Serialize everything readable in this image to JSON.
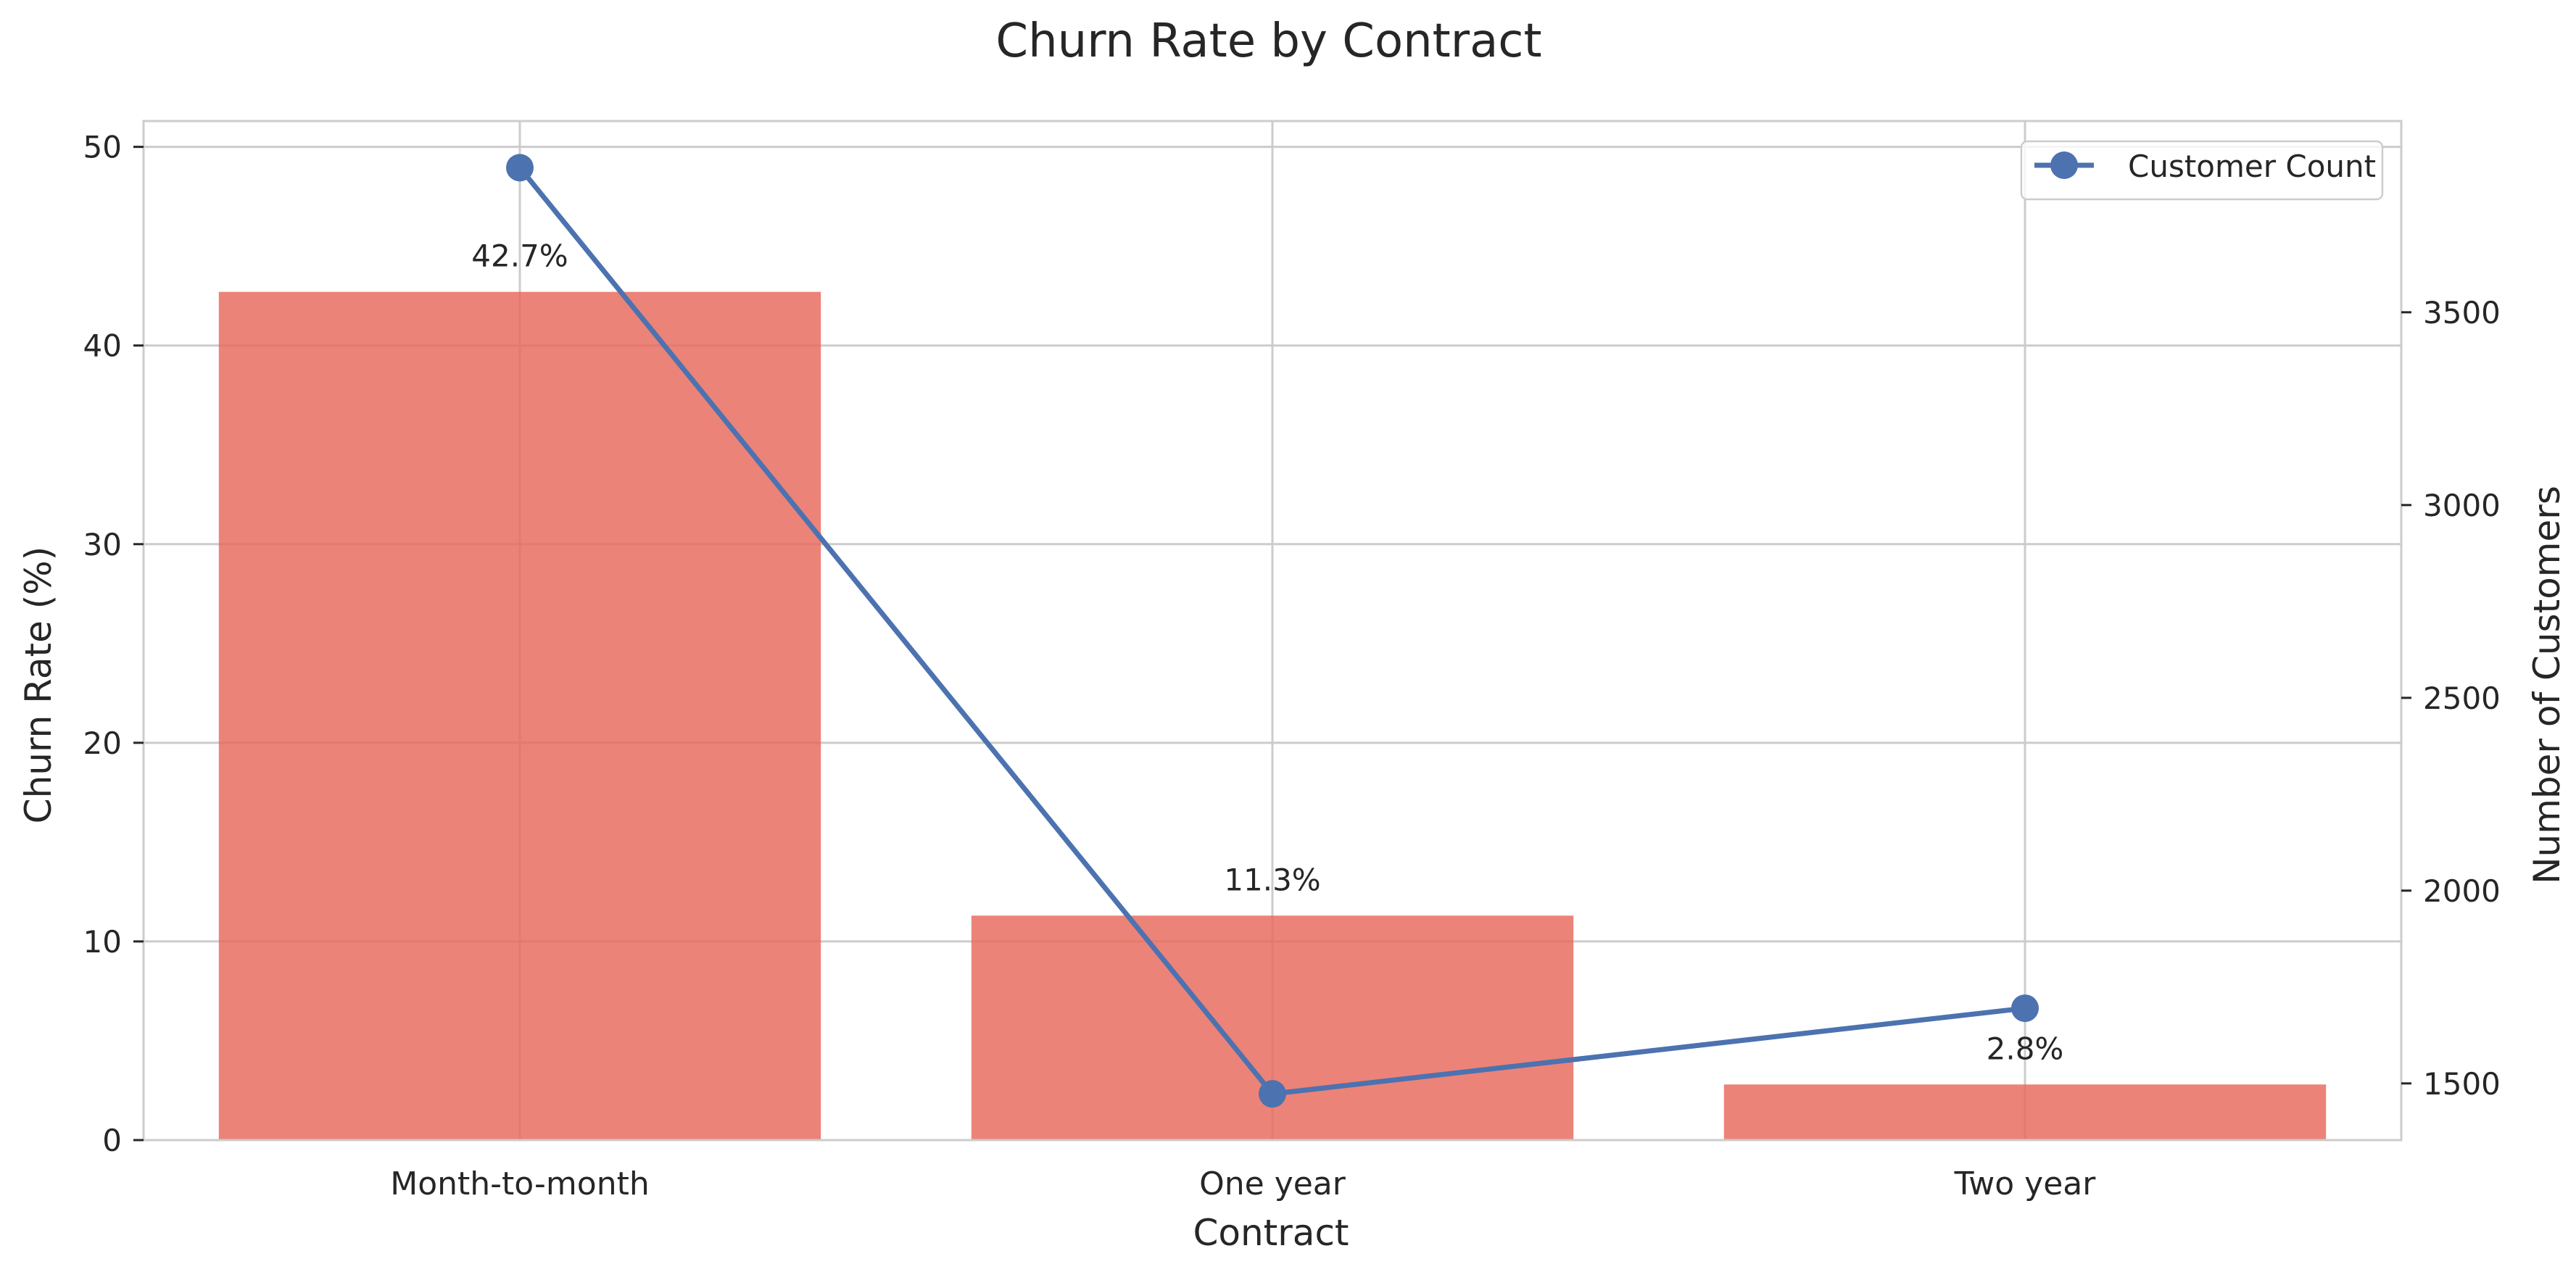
{
  "chart_data": {
    "type": "bar",
    "title": "Churn Rate by Contract",
    "xlabel": "Contract",
    "ylabel": "Churn Rate (%)",
    "y2label": "Number of Customers",
    "categories": [
      "Month-to-month",
      "One year",
      "Two year"
    ],
    "series": [
      {
        "type": "bar",
        "axis": "left",
        "values": [
          42.7,
          11.3,
          2.8
        ],
        "labels": [
          "42.7%",
          "11.3%",
          "2.8%"
        ],
        "color": "#e8685a"
      },
      {
        "name": "Customer Count",
        "type": "line",
        "axis": "right",
        "values": [
          3875,
          1473,
          1695
        ],
        "color": "#4c72b0"
      }
    ],
    "ylim": [
      0,
      51.3
    ],
    "yticks": [
      0,
      10,
      20,
      30,
      40,
      50
    ],
    "y2lim": [
      1353,
      3996
    ],
    "y2ticks": [
      1500,
      2000,
      2500,
      3000,
      3500
    ],
    "grid": true,
    "legend": "top-right"
  }
}
